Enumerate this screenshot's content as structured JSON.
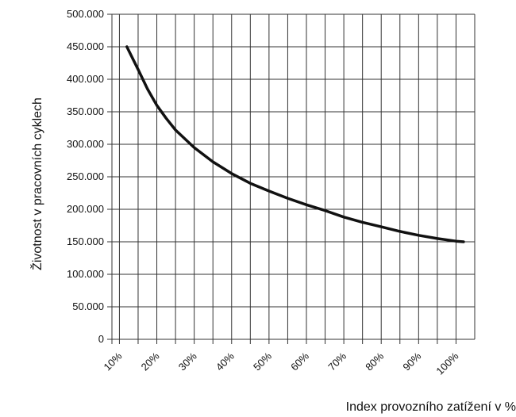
{
  "chart_data": {
    "type": "line",
    "title": "",
    "xlabel": "Index provozního zatížení v %",
    "ylabel": "Životnost v pracovních cyklech",
    "x_ticks": [
      "10%",
      "20%",
      "30%",
      "40%",
      "50%",
      "60%",
      "70%",
      "80%",
      "90%",
      "100%"
    ],
    "y_ticks": [
      "0",
      "50.000",
      "100.000",
      "150.000",
      "200.000",
      "250.000",
      "300.000",
      "350.000",
      "400.000",
      "450.000",
      "500.000"
    ],
    "xlim": [
      8,
      105
    ],
    "ylim": [
      0,
      500000
    ],
    "grid": true,
    "series": [
      {
        "name": "",
        "x": [
          12,
          15,
          17.5,
          20,
          22.5,
          25,
          30,
          35,
          40,
          45,
          50,
          55,
          60,
          65,
          70,
          75,
          80,
          85,
          90,
          95,
          100,
          102
        ],
        "y": [
          450000,
          415000,
          385000,
          360000,
          340000,
          322000,
          295000,
          273000,
          255000,
          240000,
          228000,
          217000,
          207000,
          198000,
          188000,
          180000,
          173000,
          166000,
          160000,
          155000,
          151000,
          150000
        ]
      }
    ]
  },
  "colors": {
    "line": "#111111",
    "grid": "#333333",
    "background": "#ffffff"
  }
}
